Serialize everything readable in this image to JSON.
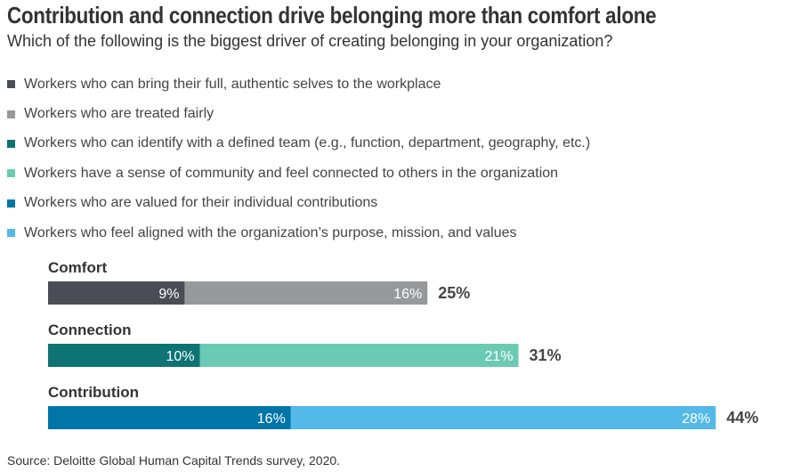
{
  "header": {
    "title": "Contribution and connection drive belonging more than comfort alone",
    "subtitle": "Which of the following is the biggest driver of creating belonging in your organization?"
  },
  "legend": [
    {
      "label": "Workers who can bring their full, authentic selves to the workplace",
      "color": "#4a4d55"
    },
    {
      "label": "Workers who are treated fairly",
      "color": "#97999b"
    },
    {
      "label": "Workers who can identify with a defined team (e.g., function, department, geography, etc.)",
      "color": "#0d7374"
    },
    {
      "label": "Workers have a sense of community and feel connected to others in the organization",
      "color": "#6bcab4"
    },
    {
      "label": "Workers who are valued for their individual contributions",
      "color": "#0076a8"
    },
    {
      "label": "Workers who feel aligned with the organization’s purpose, mission, and values",
      "color": "#52b9e8"
    }
  ],
  "chart_data": {
    "type": "bar",
    "orientation": "horizontal",
    "stacked": true,
    "title": "Contribution and connection drive belonging more than comfort alone",
    "subtitle": "Which of the following is the biggest driver of creating belonging in your organization?",
    "categories": [
      "Comfort",
      "Connection",
      "Contribution"
    ],
    "groups": [
      {
        "category": "Comfort",
        "total": 25,
        "total_label": "25%",
        "segments": [
          {
            "name": "Workers who can bring their full, authentic selves to the workplace",
            "value": 9,
            "label": "9%",
            "color": "#4a4d55"
          },
          {
            "name": "Workers who are treated fairly",
            "value": 16,
            "label": "16%",
            "color": "#97999b"
          }
        ]
      },
      {
        "category": "Connection",
        "total": 31,
        "total_label": "31%",
        "segments": [
          {
            "name": "Workers who can identify with a defined team (e.g., function, department, geography, etc.)",
            "value": 10,
            "label": "10%",
            "color": "#0d7374"
          },
          {
            "name": "Workers have a sense of community and feel connected to others in the organization",
            "value": 21,
            "label": "21%",
            "color": "#6bcab4"
          }
        ]
      },
      {
        "category": "Contribution",
        "total": 44,
        "total_label": "44%",
        "segments": [
          {
            "name": "Workers who are valued for their individual contributions",
            "value": 16,
            "label": "16%",
            "color": "#0076a8"
          },
          {
            "name": "Workers who feel aligned with the organization’s purpose, mission, and values",
            "value": 28,
            "label": "28%",
            "color": "#52b9e8"
          }
        ]
      }
    ],
    "xlim": [
      0,
      44
    ],
    "grid": false,
    "legend_position": "top"
  },
  "footer": {
    "source": "Source: Deloitte Global Human Capital Trends survey, 2020."
  }
}
